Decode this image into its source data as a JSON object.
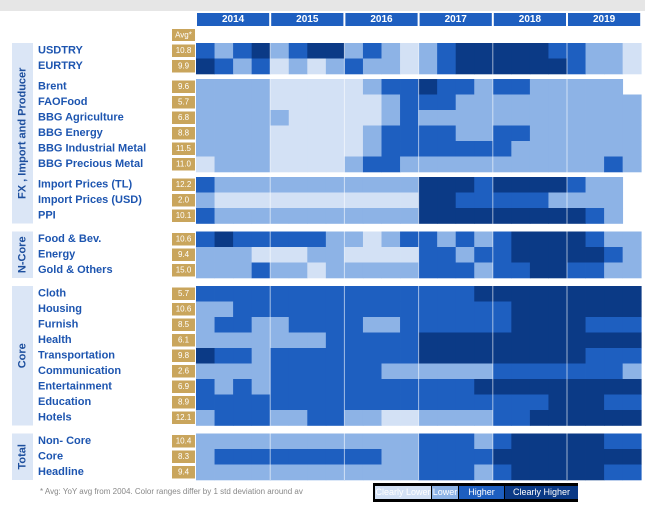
{
  "chart_data": {
    "type": "heatmap",
    "years": [
      "2014",
      "2015",
      "2016",
      "2017",
      "2018",
      "2019"
    ],
    "avg_header": "Avg*",
    "legend": [
      {
        "name": "Clearly Lower",
        "color": "#d3e1f5"
      },
      {
        "name": "Lower",
        "color": "#8db3e6"
      },
      {
        "name": "Higher",
        "color": "#1e5fc0"
      },
      {
        "name": "Clearly Higher",
        "color": "#0b3a86"
      }
    ],
    "footnote": "* Avg: YoY avg from 2004. Color ranges differ by 1 std deviation around av",
    "groups": [
      {
        "label": "FX , Import and Producer",
        "blocks": [
          [
            {
              "name": "USDTRY",
              "avg": "10.8",
              "values": [
                2,
                1,
                2,
                3,
                1,
                2,
                3,
                3,
                1,
                2,
                1,
                0,
                1,
                2,
                3,
                3,
                3,
                3,
                3,
                2,
                2,
                1,
                1,
                0
              ]
            },
            {
              "name": "EURTRY",
              "avg": "9.9",
              "values": [
                3,
                2,
                1,
                2,
                0,
                1,
                0,
                1,
                2,
                1,
                1,
                0,
                1,
                2,
                3,
                3,
                3,
                3,
                3,
                3,
                2,
                1,
                1,
                0
              ]
            }
          ],
          [
            {
              "name": "Brent",
              "avg": "9.6",
              "values": [
                1,
                1,
                1,
                1,
                0,
                0,
                0,
                0,
                0,
                1,
                2,
                2,
                3,
                2,
                2,
                1,
                2,
                2,
                1,
                1,
                1,
                1,
                1,
                null
              ]
            },
            {
              "name": "FAOFood",
              "avg": "5.7",
              "values": [
                1,
                1,
                1,
                1,
                0,
                0,
                0,
                0,
                0,
                0,
                1,
                2,
                2,
                2,
                1,
                1,
                1,
                1,
                1,
                1,
                1,
                1,
                1,
                1
              ]
            },
            {
              "name": "BBG Agriculture",
              "avg": "6.8",
              "values": [
                1,
                1,
                1,
                1,
                1,
                0,
                0,
                0,
                0,
                0,
                1,
                2,
                1,
                1,
                1,
                1,
                1,
                1,
                1,
                1,
                1,
                1,
                1,
                1
              ]
            },
            {
              "name": "BBG Energy",
              "avg": "8.8",
              "values": [
                1,
                1,
                1,
                1,
                0,
                0,
                0,
                0,
                0,
                1,
                2,
                2,
                2,
                2,
                1,
                1,
                2,
                2,
                1,
                1,
                1,
                1,
                1,
                1
              ]
            },
            {
              "name": "BBG Industrial Metal",
              "avg": "11.5",
              "values": [
                1,
                1,
                1,
                1,
                0,
                0,
                0,
                0,
                0,
                1,
                2,
                2,
                2,
                2,
                2,
                2,
                2,
                1,
                1,
                1,
                1,
                1,
                1,
                1
              ]
            },
            {
              "name": "BBG Precious Metal",
              "avg": "11.0",
              "values": [
                0,
                1,
                1,
                1,
                0,
                0,
                0,
                0,
                1,
                2,
                2,
                1,
                1,
                1,
                1,
                1,
                1,
                1,
                1,
                1,
                1,
                1,
                2,
                1
              ]
            }
          ],
          [
            {
              "name": "Import Prices (TL)",
              "avg": "12.2",
              "values": [
                2,
                1,
                1,
                1,
                1,
                1,
                1,
                1,
                1,
                1,
                1,
                1,
                3,
                3,
                3,
                2,
                3,
                3,
                3,
                3,
                2,
                1,
                1,
                null
              ]
            },
            {
              "name": "Import Prices (USD)",
              "avg": "2.0",
              "values": [
                1,
                0,
                0,
                0,
                0,
                0,
                0,
                0,
                0,
                0,
                0,
                0,
                3,
                3,
                2,
                2,
                2,
                2,
                2,
                1,
                1,
                1,
                1,
                null
              ]
            },
            {
              "name": "PPI",
              "avg": "10.1",
              "values": [
                2,
                1,
                1,
                1,
                1,
                1,
                1,
                1,
                1,
                1,
                1,
                1,
                3,
                3,
                3,
                3,
                3,
                3,
                3,
                3,
                3,
                2,
                1,
                null
              ]
            }
          ]
        ]
      },
      {
        "label": "N-Core",
        "blocks": [
          [
            {
              "name": "Food & Bev.",
              "avg": "10.6",
              "values": [
                2,
                3,
                2,
                2,
                2,
                2,
                2,
                1,
                1,
                0,
                1,
                2,
                2,
                1,
                2,
                1,
                2,
                3,
                3,
                3,
                3,
                2,
                1,
                1
              ]
            },
            {
              "name": "Energy",
              "avg": "9.4",
              "values": [
                1,
                1,
                1,
                0,
                0,
                0,
                1,
                1,
                0,
                0,
                0,
                0,
                2,
                2,
                1,
                2,
                2,
                3,
                3,
                3,
                3,
                3,
                2,
                1
              ]
            },
            {
              "name": "Gold & Others",
              "avg": "15.0",
              "values": [
                1,
                1,
                1,
                2,
                1,
                1,
                0,
                1,
                1,
                1,
                1,
                1,
                2,
                2,
                2,
                1,
                2,
                2,
                3,
                3,
                2,
                2,
                1,
                1
              ]
            }
          ]
        ]
      },
      {
        "label": "Core",
        "blocks": [
          [
            {
              "name": "Cloth",
              "avg": "5.7",
              "values": [
                2,
                2,
                2,
                2,
                2,
                2,
                2,
                2,
                2,
                2,
                2,
                2,
                2,
                2,
                2,
                3,
                3,
                3,
                3,
                3,
                3,
                3,
                3,
                3
              ]
            },
            {
              "name": "Housing",
              "avg": "10.6",
              "values": [
                1,
                1,
                2,
                2,
                2,
                2,
                2,
                2,
                2,
                2,
                2,
                2,
                2,
                2,
                2,
                2,
                2,
                3,
                3,
                3,
                3,
                3,
                3,
                3
              ]
            },
            {
              "name": "Furnish",
              "avg": "8.5",
              "values": [
                1,
                2,
                2,
                1,
                1,
                2,
                2,
                2,
                2,
                1,
                1,
                2,
                2,
                2,
                2,
                2,
                2,
                3,
                3,
                3,
                3,
                2,
                2,
                2
              ]
            },
            {
              "name": "Health",
              "avg": "6.1",
              "values": [
                1,
                1,
                1,
                1,
                1,
                1,
                1,
                2,
                2,
                2,
                2,
                2,
                3,
                3,
                3,
                3,
                3,
                3,
                3,
                3,
                3,
                3,
                3,
                3
              ]
            },
            {
              "name": "Transportation",
              "avg": "9.8",
              "values": [
                3,
                2,
                2,
                1,
                2,
                2,
                2,
                2,
                2,
                2,
                2,
                2,
                3,
                3,
                3,
                3,
                3,
                3,
                3,
                3,
                3,
                2,
                2,
                2
              ]
            },
            {
              "name": "Communication",
              "avg": "2.6",
              "values": [
                1,
                1,
                1,
                1,
                2,
                2,
                2,
                2,
                2,
                2,
                1,
                1,
                1,
                1,
                1,
                1,
                2,
                2,
                2,
                2,
                2,
                2,
                2,
                1
              ]
            },
            {
              "name": "Entertainment",
              "avg": "6.9",
              "values": [
                2,
                1,
                2,
                1,
                2,
                2,
                2,
                2,
                2,
                2,
                2,
                2,
                2,
                2,
                2,
                3,
                3,
                3,
                3,
                3,
                3,
                3,
                3,
                3
              ]
            },
            {
              "name": "Education",
              "avg": "8.9",
              "values": [
                2,
                2,
                2,
                2,
                2,
                2,
                2,
                2,
                2,
                2,
                2,
                2,
                2,
                2,
                2,
                2,
                2,
                2,
                2,
                3,
                3,
                3,
                2,
                2
              ]
            },
            {
              "name": "Hotels",
              "avg": "12.1",
              "values": [
                1,
                2,
                2,
                2,
                1,
                1,
                2,
                2,
                1,
                1,
                0,
                0,
                1,
                1,
                1,
                1,
                2,
                2,
                3,
                3,
                3,
                3,
                3,
                3
              ]
            }
          ]
        ]
      },
      {
        "label": "Total",
        "blocks": [
          [
            {
              "name": "Non- Core",
              "avg": "10.4",
              "values": [
                1,
                1,
                1,
                1,
                1,
                1,
                1,
                1,
                1,
                1,
                1,
                1,
                2,
                2,
                2,
                1,
                2,
                3,
                3,
                3,
                3,
                3,
                2,
                2
              ]
            },
            {
              "name": "Core",
              "avg": "8.3",
              "values": [
                1,
                2,
                2,
                2,
                2,
                2,
                2,
                2,
                2,
                2,
                1,
                1,
                2,
                2,
                2,
                2,
                3,
                3,
                3,
                3,
                3,
                3,
                3,
                3
              ]
            },
            {
              "name": "Headline",
              "avg": "9.4",
              "values": [
                1,
                1,
                1,
                1,
                1,
                1,
                1,
                1,
                1,
                1,
                1,
                1,
                2,
                2,
                2,
                1,
                2,
                3,
                3,
                3,
                3,
                3,
                2,
                2
              ]
            }
          ]
        ]
      }
    ]
  }
}
